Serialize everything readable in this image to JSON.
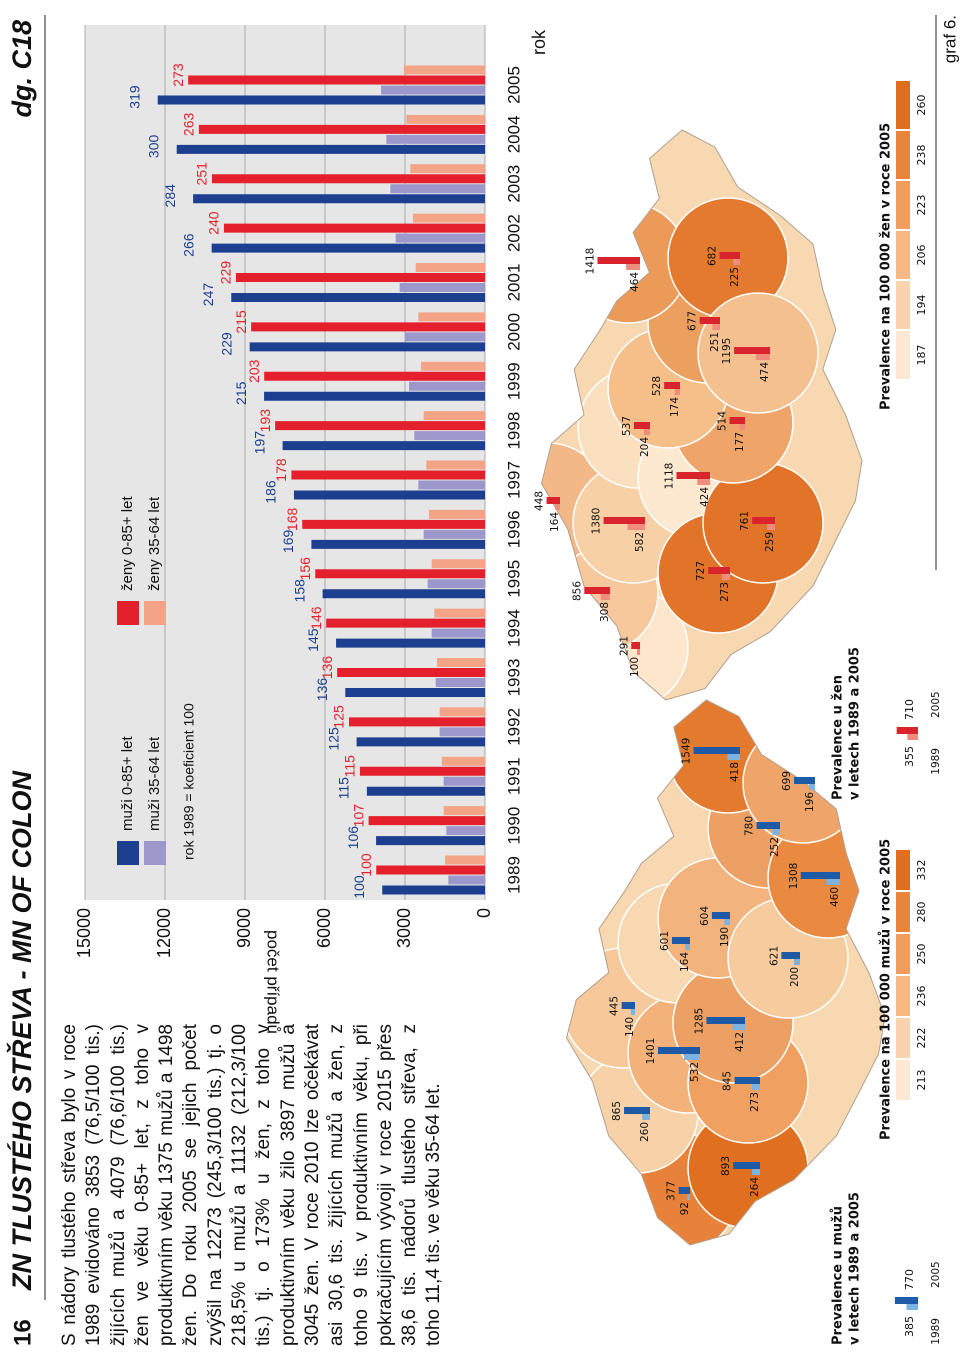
{
  "page": {
    "number": "16",
    "title": "ZN TLUSTÉHO STŘEVA - MN OF COLON",
    "code": "dg. C18",
    "figure": "graf 6."
  },
  "paragraph": "S nádory tlustého střeva bylo v roce 1989 evidováno 3853 (76,5/100 tis.) žijících mužů a 4079 (76,6/100 tis.) žen ve věku 0-85+ let, z toho v produktivním věku 1375 mužů a 1498 žen. Do roku 2005 se jejich počet zvýšil na 12273 (245,3/100 tis.) tj. o 218,5% u mužů a 11132 (212,3/100 tis.) tj. o 173% u žen, z toho v produktivním věku žilo 3897 mužů a 3045 žen. V roce 2010 lze očekávat asi 30,6 tis. žijících mužů a žen, z toho 9 tis. v produktivním věku, při pokračujícím vývoji v roce 2015 přes 38,6 tis. nádorů tlustého střeva, z toho 11,4 tis. ve věku 35-64 let.",
  "chart_data": {
    "type": "bar",
    "y_label": "počet případů",
    "x_label": "rok",
    "note": "rok 1989 = koeficient 100",
    "categories": [
      "1989",
      "1990",
      "1991",
      "1992",
      "1993",
      "1994",
      "1995",
      "1996",
      "1997",
      "1998",
      "1999",
      "2000",
      "2001",
      "2002",
      "2003",
      "2004",
      "2005"
    ],
    "series": [
      {
        "name": "muži 0-85+ let",
        "color": "#1c3f8f",
        "values": [
          3853,
          4085,
          4430,
          4815,
          5240,
          5585,
          6090,
          6510,
          7165,
          7590,
          8285,
          8825,
          9515,
          10250,
          10945,
          11560,
          12273
        ],
        "index": [
          100,
          106,
          115,
          125,
          136,
          145,
          158,
          169,
          186,
          197,
          215,
          229,
          247,
          266,
          284,
          300,
          319
        ]
      },
      {
        "name": "muži 35-64 let",
        "color": "#9c98cc",
        "values": [
          1375,
          1450,
          1550,
          1700,
          1850,
          2000,
          2150,
          2300,
          2500,
          2650,
          2850,
          3000,
          3200,
          3350,
          3550,
          3700,
          3897
        ]
      },
      {
        "name": "ženy 0-85+ let",
        "color": "#e3202b",
        "values": [
          4079,
          4365,
          4690,
          5100,
          5545,
          5955,
          6365,
          6855,
          7260,
          7870,
          8280,
          8770,
          9340,
          9790,
          10240,
          10730,
          11132
        ],
        "index": [
          100,
          107,
          115,
          125,
          136,
          146,
          156,
          168,
          178,
          193,
          203,
          215,
          229,
          240,
          251,
          263,
          273
        ]
      },
      {
        "name": "ženy 35-64 let",
        "color": "#f4a486",
        "values": [
          1498,
          1550,
          1620,
          1700,
          1800,
          1900,
          2000,
          2100,
          2200,
          2300,
          2400,
          2500,
          2600,
          2700,
          2800,
          2950,
          3045
        ]
      }
    ],
    "ylim": [
      0,
      15000
    ],
    "yticks": [
      0,
      3000,
      6000,
      9000,
      12000,
      15000
    ],
    "grid": true
  },
  "maps": [
    {
      "title": [
        "Prevalence u mužů",
        "v letech 1989 a 2005"
      ],
      "legend_values": [
        385,
        770
      ],
      "legend_years": [
        "1989",
        "2005"
      ],
      "bar_colors": [
        "#7db3e0",
        "#1f5aa6"
      ],
      "scale_title": "Prevalence na 100 000 mužů v roce 2005",
      "scale_ticks": [
        213,
        222,
        236,
        250,
        280,
        332
      ],
      "scale_colors": [
        "#fde9d3",
        "#f9d3ad",
        "#f5b985",
        "#f09e5f",
        "#e9843b",
        "#e06e1f"
      ],
      "regions": [
        {
          "v1989": 92,
          "v2005": 377,
          "color": "#e8823a"
        },
        {
          "v1989": 260,
          "v2005": 865,
          "color": "#f7d2a8"
        },
        {
          "v1989": 140,
          "v2005": 445,
          "color": "#f6c89a"
        },
        {
          "v1989": 532,
          "v2005": 1401,
          "color": "#f3b27a"
        },
        {
          "v1989": 164,
          "v2005": 601,
          "color": "#f8d8b0"
        },
        {
          "v1989": 264,
          "v2005": 893,
          "color": "#e07020"
        },
        {
          "v1989": 273,
          "v2005": 845,
          "color": "#f0a060"
        },
        {
          "v1989": 412,
          "v2005": 1285,
          "color": "#eda064"
        },
        {
          "v1989": 190,
          "v2005": 604,
          "color": "#f2b37c"
        },
        {
          "v1989": 200,
          "v2005": 621,
          "color": "#f6cc9e"
        },
        {
          "v1989": 252,
          "v2005": 780,
          "color": "#eda064"
        },
        {
          "v1989": 418,
          "v2005": 1549,
          "color": "#e47a2e"
        },
        {
          "v1989": 460,
          "v2005": 1308,
          "color": "#e98a40"
        },
        {
          "v1989": 196,
          "v2005": 699,
          "color": "#efa56a"
        }
      ]
    },
    {
      "title": [
        "Prevalence u žen",
        "v letech 1989 a 2005"
      ],
      "legend_values": [
        355,
        710
      ],
      "legend_years": [
        "1989",
        "2005"
      ],
      "bar_colors": [
        "#f08c7c",
        "#d9232d"
      ],
      "scale_title": "Prevalence na 100 000 žen v roce 2005",
      "scale_ticks": [
        187,
        194,
        206,
        223,
        238,
        260
      ],
      "scale_colors": [
        "#fde9d3",
        "#f9d3ad",
        "#f5b985",
        "#f09e5f",
        "#e9843b",
        "#e06e1f"
      ],
      "regions": [
        {
          "v1989": 100,
          "v2005": 291,
          "color": "#fde6cc"
        },
        {
          "v1989": 308,
          "v2005": 856,
          "color": "#f6c89c"
        },
        {
          "v1989": 164,
          "v2005": 448,
          "color": "#f3b887"
        },
        {
          "v1989": 582,
          "v2005": 1380,
          "color": "#f7d0a6"
        },
        {
          "v1989": 204,
          "v2005": 537,
          "color": "#fbe0c0"
        },
        {
          "v1989": 424,
          "v2005": 1118,
          "color": "#fde8d0"
        },
        {
          "v1989": 273,
          "v2005": 727,
          "color": "#e2742a"
        },
        {
          "v1989": 259,
          "v2005": 761,
          "color": "#e2742a"
        },
        {
          "v1989": 177,
          "v2005": 514,
          "color": "#efa56a"
        },
        {
          "v1989": 174,
          "v2005": 528,
          "color": "#f5bf8a"
        },
        {
          "v1989": 251,
          "v2005": 677,
          "color": "#eca060"
        },
        {
          "v1989": 464,
          "v2005": 1418,
          "color": "#eb9a58"
        },
        {
          "v1989": 225,
          "v2005": 682,
          "color": "#e47a30"
        },
        {
          "v1989": 474,
          "v2005": 1195,
          "color": "#f5c090"
        }
      ]
    }
  ]
}
